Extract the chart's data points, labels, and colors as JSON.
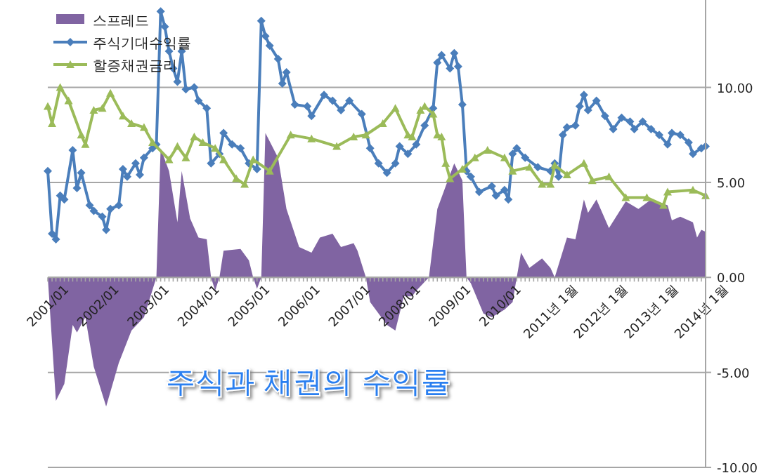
{
  "chart_data": {
    "type": "line",
    "title": "주식과 채권의 수익률",
    "xlim": [
      "2001-01",
      "2014-02"
    ],
    "xticks": [
      {
        "value": "2001-01",
        "label": "2001/01"
      },
      {
        "value": "2002-01",
        "label": "2002/01"
      },
      {
        "value": "2003-01",
        "label": "2003/01"
      },
      {
        "value": "2004-01",
        "label": "2004/01"
      },
      {
        "value": "2005-01",
        "label": "2005/01"
      },
      {
        "value": "2006-01",
        "label": "2006/01"
      },
      {
        "value": "2007-01",
        "label": "2007/01"
      },
      {
        "value": "2008-01",
        "label": "2008/01"
      },
      {
        "value": "2009-01",
        "label": "2009/01"
      },
      {
        "value": "2010-01",
        "label": "2010/01"
      },
      {
        "value": "2011-01",
        "label": "2011년 1월"
      },
      {
        "value": "2012-01",
        "label": "2012년 1월"
      },
      {
        "value": "2013-01",
        "label": "2013년 1월"
      },
      {
        "value": "2014-01",
        "label": "2014년 1월"
      }
    ],
    "ylim": [
      -10,
      14.6
    ],
    "yticks": [
      {
        "value": -10,
        "label": "-10.00"
      },
      {
        "value": -5,
        "label": "-5.00"
      },
      {
        "value": 0,
        "label": "0.00"
      },
      {
        "value": 5,
        "label": "5.00"
      },
      {
        "value": 10,
        "label": "10.00"
      }
    ],
    "grid": "y",
    "legend": "top left",
    "series": [
      {
        "name": "스프레드",
        "type": "area",
        "color": "#8064a2",
        "marker": "none",
        "x": [
          "2001-01",
          "2001-03",
          "2001-05",
          "2001-07",
          "2001-08",
          "2001-10",
          "2001-12",
          "2002-03",
          "2002-06",
          "2002-09",
          "2002-12",
          "2003-03",
          "2003-04",
          "2003-06",
          "2003-08",
          "2003-09",
          "2003-11",
          "2004-01",
          "2004-03",
          "2004-04",
          "2004-05",
          "2004-06",
          "2004-07",
          "2004-11",
          "2005-01",
          "2005-02",
          "2005-03",
          "2005-04",
          "2005-05",
          "2005-08",
          "2005-10",
          "2006-01",
          "2006-04",
          "2006-06",
          "2006-09",
          "2006-11",
          "2007-02",
          "2007-03",
          "2007-05",
          "2007-06",
          "2007-10",
          "2007-12",
          "2008-02",
          "2008-04",
          "2008-05",
          "2008-08",
          "2008-10",
          "2008-12",
          "2009-02",
          "2009-04",
          "2009-05",
          "2009-06",
          "2009-09",
          "2009-11",
          "2010-02",
          "2010-04",
          "2010-05",
          "2010-06",
          "2010-08",
          "2010-11",
          "2011-01",
          "2011-02",
          "2011-05",
          "2011-07",
          "2011-09",
          "2011-10",
          "2011-12",
          "2012-03",
          "2012-07",
          "2012-10",
          "2013-01",
          "2013-05",
          "2013-06",
          "2013-08",
          "2013-11",
          "2013-12",
          "2014-01",
          "2014-02"
        ],
        "values": [
          0,
          -6.5,
          -5.6,
          -2.5,
          -2.9,
          -2.1,
          -4.7,
          -6.8,
          -4.5,
          -2.8,
          -2.1,
          0,
          6.8,
          5.6,
          2.9,
          5.6,
          3.1,
          2.1,
          2.0,
          0,
          -0.7,
          0,
          1.4,
          1.5,
          0.9,
          0,
          -0.6,
          0,
          7.6,
          6.3,
          3.6,
          1.6,
          1.3,
          2.1,
          2.3,
          1.6,
          1.8,
          1.4,
          0,
          -1.3,
          -2.5,
          -2.8,
          -1.0,
          -1.0,
          -0.7,
          0,
          3.6,
          4.8,
          6.0,
          5.1,
          0,
          -0.3,
          -1.9,
          -2.1,
          -1.7,
          -1.3,
          0,
          1.3,
          0.5,
          1.0,
          0.5,
          0,
          2.1,
          2.0,
          4.1,
          3.4,
          4.1,
          2.6,
          4.0,
          3.6,
          4.1,
          3.8,
          3.0,
          3.2,
          2.9,
          2.1,
          2.5,
          2.4
        ]
      },
      {
        "name": "주식기대수익률",
        "type": "line",
        "color": "#4a7ebb",
        "marker": "diamond",
        "x": [
          "2001-01",
          "2001-02",
          "2001-03",
          "2001-04",
          "2001-05",
          "2001-07",
          "2001-08",
          "2001-09",
          "2001-11",
          "2001-12",
          "2002-02",
          "2002-03",
          "2002-04",
          "2002-06",
          "2002-07",
          "2002-08",
          "2002-10",
          "2002-11",
          "2002-12",
          "2003-02",
          "2003-03",
          "2003-04",
          "2003-05",
          "2003-06",
          "2003-07",
          "2003-08",
          "2003-09",
          "2003-10",
          "2003-12",
          "2004-01",
          "2004-03",
          "2004-04",
          "2004-06",
          "2004-07",
          "2004-09",
          "2004-11",
          "2005-01",
          "2005-03",
          "2005-04",
          "2005-05",
          "2005-06",
          "2005-08",
          "2005-09",
          "2005-10",
          "2005-12",
          "2006-03",
          "2006-04",
          "2006-07",
          "2006-09",
          "2006-11",
          "2007-01",
          "2007-04",
          "2007-06",
          "2007-08",
          "2007-10",
          "2007-12",
          "2008-01",
          "2008-03",
          "2008-05",
          "2008-07",
          "2008-09",
          "2008-10",
          "2008-11",
          "2009-01",
          "2009-02",
          "2009-03",
          "2009-04",
          "2009-05",
          "2009-06",
          "2009-08",
          "2009-11",
          "2009-12",
          "2010-02",
          "2010-03",
          "2010-04",
          "2010-05",
          "2010-07",
          "2010-10",
          "2011-01",
          "2011-02",
          "2011-03",
          "2011-04",
          "2011-05",
          "2011-07",
          "2011-08",
          "2011-09",
          "2011-10",
          "2011-12",
          "2012-02",
          "2012-04",
          "2012-06",
          "2012-08",
          "2012-09",
          "2012-11",
          "2013-01",
          "2013-03",
          "2013-05",
          "2013-06",
          "2013-08",
          "2013-10",
          "2013-11",
          "2014-01",
          "2014-02"
        ],
        "values": [
          5.6,
          2.3,
          2.0,
          4.3,
          4.1,
          6.7,
          4.7,
          5.5,
          3.8,
          3.5,
          3.2,
          2.5,
          3.6,
          3.8,
          5.7,
          5.3,
          6.0,
          5.4,
          6.3,
          6.8,
          7.0,
          14.0,
          13.2,
          11.9,
          11.0,
          10.3,
          11.9,
          9.9,
          10.0,
          9.3,
          8.9,
          6.0,
          6.5,
          7.6,
          7.0,
          6.8,
          6.0,
          5.7,
          13.5,
          12.7,
          12.2,
          11.5,
          10.2,
          10.8,
          9.1,
          9.0,
          8.5,
          9.6,
          9.3,
          8.8,
          9.3,
          8.6,
          6.8,
          6.0,
          5.5,
          6.0,
          6.9,
          6.5,
          7.0,
          8.0,
          8.9,
          11.3,
          11.7,
          11.0,
          11.8,
          11.1,
          9.1,
          5.6,
          5.3,
          4.5,
          4.8,
          4.3,
          4.6,
          4.1,
          6.5,
          6.8,
          6.3,
          5.8,
          5.6,
          6.0,
          5.3,
          7.5,
          7.9,
          8.0,
          9.0,
          9.6,
          8.8,
          9.3,
          8.5,
          7.8,
          8.4,
          8.2,
          7.8,
          8.2,
          7.8,
          7.5,
          7.0,
          7.6,
          7.5,
          7.1,
          6.5,
          6.8,
          6.9
        ]
      },
      {
        "name": "할증채권금리",
        "type": "line",
        "color": "#9bbb59",
        "marker": "triangle",
        "x": [
          "2001-01",
          "2001-02",
          "2001-04",
          "2001-06",
          "2001-09",
          "2001-10",
          "2001-12",
          "2002-02",
          "2002-04",
          "2002-07",
          "2002-09",
          "2002-12",
          "2003-02",
          "2003-06",
          "2003-08",
          "2003-10",
          "2003-12",
          "2004-02",
          "2004-05",
          "2004-07",
          "2004-10",
          "2004-12",
          "2005-02",
          "2005-06",
          "2005-11",
          "2006-04",
          "2006-10",
          "2007-02",
          "2007-05",
          "2007-09",
          "2007-12",
          "2008-03",
          "2008-04",
          "2008-06",
          "2008-07",
          "2008-09",
          "2008-10",
          "2008-11",
          "2008-12",
          "2009-01",
          "2009-04",
          "2009-07",
          "2009-10",
          "2010-02",
          "2010-04",
          "2010-08",
          "2010-11",
          "2011-01",
          "2011-02",
          "2011-05",
          "2011-09",
          "2011-11",
          "2012-03",
          "2012-07",
          "2012-12",
          "2013-04",
          "2013-05",
          "2013-11",
          "2014-02"
        ],
        "values": [
          9.0,
          8.1,
          10.0,
          9.3,
          7.5,
          7.0,
          8.8,
          8.9,
          9.7,
          8.5,
          8.1,
          7.9,
          7.1,
          6.2,
          6.9,
          6.3,
          7.4,
          7.1,
          6.8,
          6.2,
          5.2,
          4.9,
          6.2,
          5.6,
          7.5,
          7.3,
          6.9,
          7.4,
          7.5,
          8.1,
          8.9,
          7.5,
          7.4,
          8.8,
          9.0,
          8.6,
          7.5,
          7.4,
          6.0,
          5.2,
          5.7,
          6.3,
          6.7,
          6.3,
          5.6,
          5.8,
          4.9,
          4.9,
          5.9,
          5.4,
          6.0,
          5.1,
          5.3,
          4.2,
          4.2,
          3.8,
          4.5,
          4.6,
          4.3
        ]
      }
    ]
  }
}
